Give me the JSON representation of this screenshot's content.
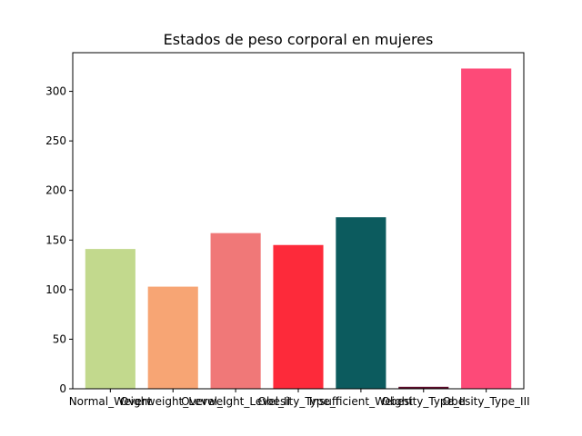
{
  "chart_data": {
    "type": "bar",
    "title": "Estados de peso corporal en mujeres",
    "xlabel": "",
    "ylabel": "",
    "categories": [
      "Normal_Weight",
      "Overweight_Level_I",
      "Overweight_Level_II",
      "Obesity_Type_I",
      "Insufficient_Weight",
      "Obesity_Type_II",
      "Obesity_Type_III"
    ],
    "values": [
      141,
      103,
      157,
      145,
      173,
      2,
      323
    ],
    "colors": [
      "#c2d98d",
      "#f7a574",
      "#f07878",
      "#fd2a3a",
      "#0c5b5e",
      "#5e0c2a",
      "#fd4a78"
    ],
    "yticks": [
      0,
      50,
      100,
      150,
      200,
      250,
      300
    ],
    "ylim": [
      0,
      339
    ],
    "grid": false,
    "legend": "none"
  }
}
